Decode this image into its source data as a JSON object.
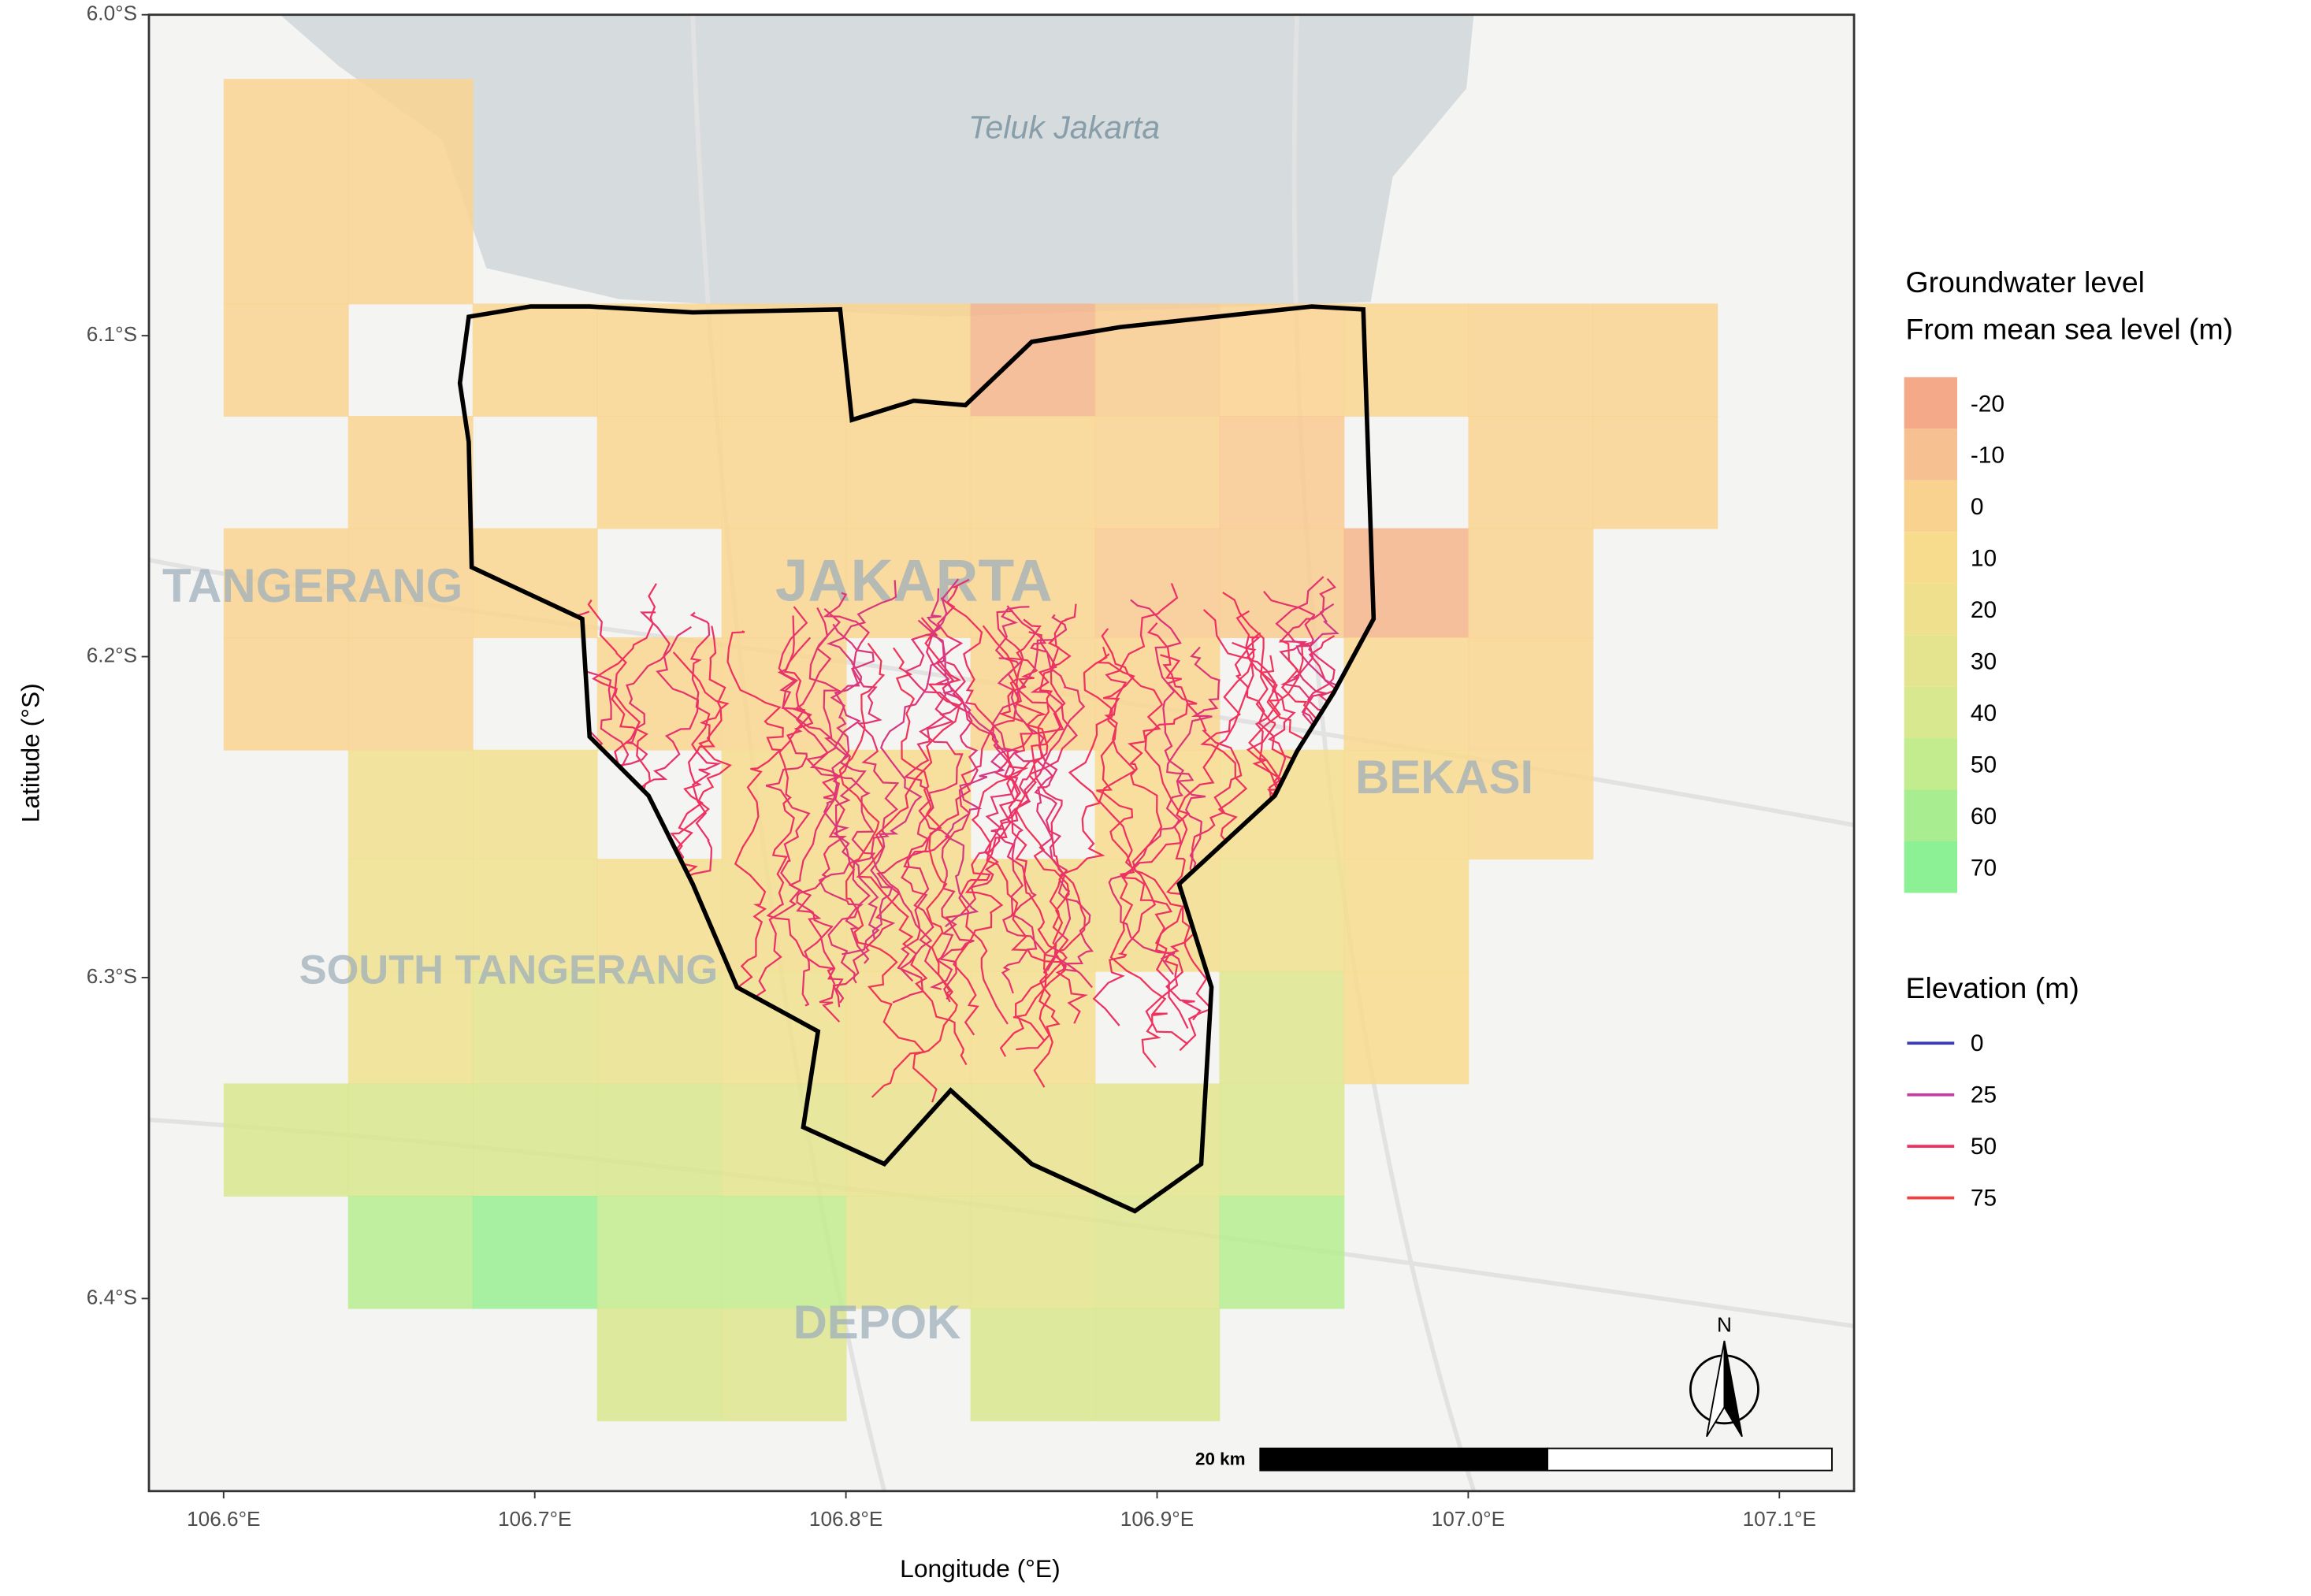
{
  "map": {
    "x_label": "Longitude (°E)",
    "y_label": "Latitude (°S)",
    "xlim": [
      106.576,
      107.124
    ],
    "ylim": [
      6.0,
      6.46
    ],
    "xticks": [
      {
        "value": 106.6,
        "label": "106.6°E"
      },
      {
        "value": 106.7,
        "label": "106.7°E"
      },
      {
        "value": 106.8,
        "label": "106.8°E"
      },
      {
        "value": 106.9,
        "label": "106.9°E"
      },
      {
        "value": 107.0,
        "label": "107.0°E"
      },
      {
        "value": 107.1,
        "label": "107.1°E"
      }
    ],
    "yticks": [
      {
        "value": 6.0,
        "label": "6.0°S"
      },
      {
        "value": 6.1,
        "label": "6.1°S"
      },
      {
        "value": 6.2,
        "label": "6.2°S"
      },
      {
        "value": 6.3,
        "label": "6.3°S"
      },
      {
        "value": 6.4,
        "label": "6.4°S"
      }
    ],
    "place_labels": [
      "Teluk Jakarta",
      "TANGERANG",
      "JAKARTA",
      "BEKASI",
      "SOUTH TANGERANG",
      "DEPOK"
    ],
    "groundwater": {
      "title": [
        "Groundwater level",
        "From mean sea level (m)"
      ],
      "legend_values": [
        -20,
        -10,
        0,
        10,
        20,
        30,
        40,
        50,
        60,
        70
      ],
      "colors": [
        "#f4aa88",
        "#f7c090",
        "#fad28f",
        "#f7dc8e",
        "#efe08e",
        "#e4e48e",
        "#d8e88e",
        "#c2ec8e",
        "#a8ee90",
        "#8cf094"
      ],
      "cell_lons": [
        106.6,
        106.64,
        106.68,
        106.72,
        106.76,
        106.8,
        106.84,
        106.88,
        106.92,
        106.96,
        107.0,
        107.04,
        107.08
      ],
      "cell_lats": [
        6.02,
        6.09,
        6.125,
        6.16,
        6.194,
        6.229,
        6.263,
        6.298,
        6.333,
        6.368,
        6.403,
        6.438
      ],
      "values": [
        [
          2,
          2,
          null,
          null,
          null,
          null,
          null,
          null,
          null,
          null,
          null,
          null
        ],
        [
          2,
          null,
          3,
          3,
          3,
          3,
          -15,
          -3,
          0,
          3,
          2,
          2
        ],
        [
          null,
          2,
          null,
          3,
          3,
          3,
          3,
          2,
          -5,
          null,
          2,
          2
        ],
        [
          2,
          2,
          3,
          null,
          3,
          3,
          3,
          -5,
          -3,
          -15,
          2,
          null
        ],
        [
          2,
          2,
          null,
          3,
          3,
          null,
          3,
          3,
          null,
          5,
          3,
          null
        ],
        [
          null,
          18,
          18,
          null,
          10,
          10,
          null,
          8,
          15,
          8,
          5,
          null
        ],
        [
          null,
          20,
          20,
          15,
          12,
          12,
          12,
          12,
          20,
          10,
          null,
          null
        ],
        [
          null,
          20,
          30,
          25,
          20,
          15,
          15,
          null,
          35,
          8,
          null,
          null
        ],
        [
          40,
          40,
          40,
          40,
          30,
          25,
          25,
          30,
          38,
          null,
          null,
          null
        ],
        [
          null,
          55,
          65,
          50,
          50,
          30,
          30,
          35,
          55,
          null,
          null,
          null
        ],
        [
          null,
          null,
          null,
          40,
          35,
          null,
          40,
          40,
          null,
          null,
          null,
          null
        ]
      ]
    },
    "elevation": {
      "title": "Elevation (m)",
      "legend_values": [
        0,
        25,
        50,
        75
      ],
      "colors": [
        "#3b3bb0",
        "#c040a0",
        "#f03060",
        "#f04040"
      ]
    },
    "scale_bar": "20 km",
    "north": "N"
  }
}
